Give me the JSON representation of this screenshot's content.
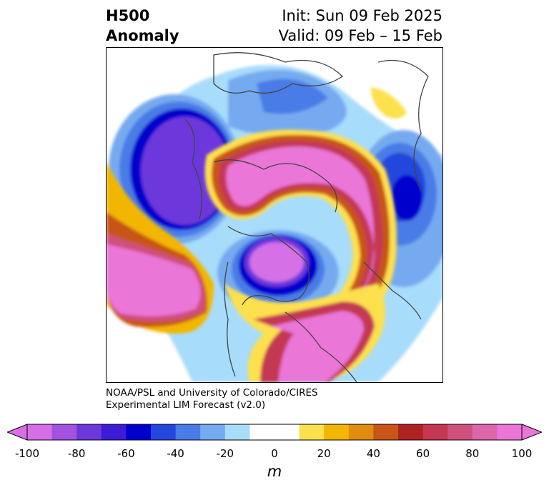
{
  "title": {
    "left_line1": "H500",
    "left_line2": "Anomaly",
    "init": "Init: Sun 09 Feb 2025",
    "valid": "Valid: 09 Feb – 15 Feb"
  },
  "credit": {
    "line1": "NOAA/PSL and University of Colorado/CIRES",
    "line2": "Experimental LIM Forecast (v2.0)"
  },
  "colorbar": {
    "unit": "m",
    "ticks": [
      "-100",
      "-80",
      "-60",
      "-40",
      "-20",
      "0",
      "20",
      "40",
      "60",
      "80",
      "100"
    ],
    "colors": [
      "#d66fe6",
      "#a352df",
      "#6c38dc",
      "#3e1cd5",
      "#0000cc",
      "#2346dc",
      "#4a7be6",
      "#76aaf0",
      "#a8dcfb",
      "#ffffff",
      "#ffffff",
      "#fde04e",
      "#f2b600",
      "#e08c10",
      "#c85418",
      "#b02222",
      "#c43852",
      "#d0507c",
      "#dc66ac",
      "#ea76d8"
    ],
    "min_color": "#d66fe6",
    "max_color": "#ea76d8"
  }
}
